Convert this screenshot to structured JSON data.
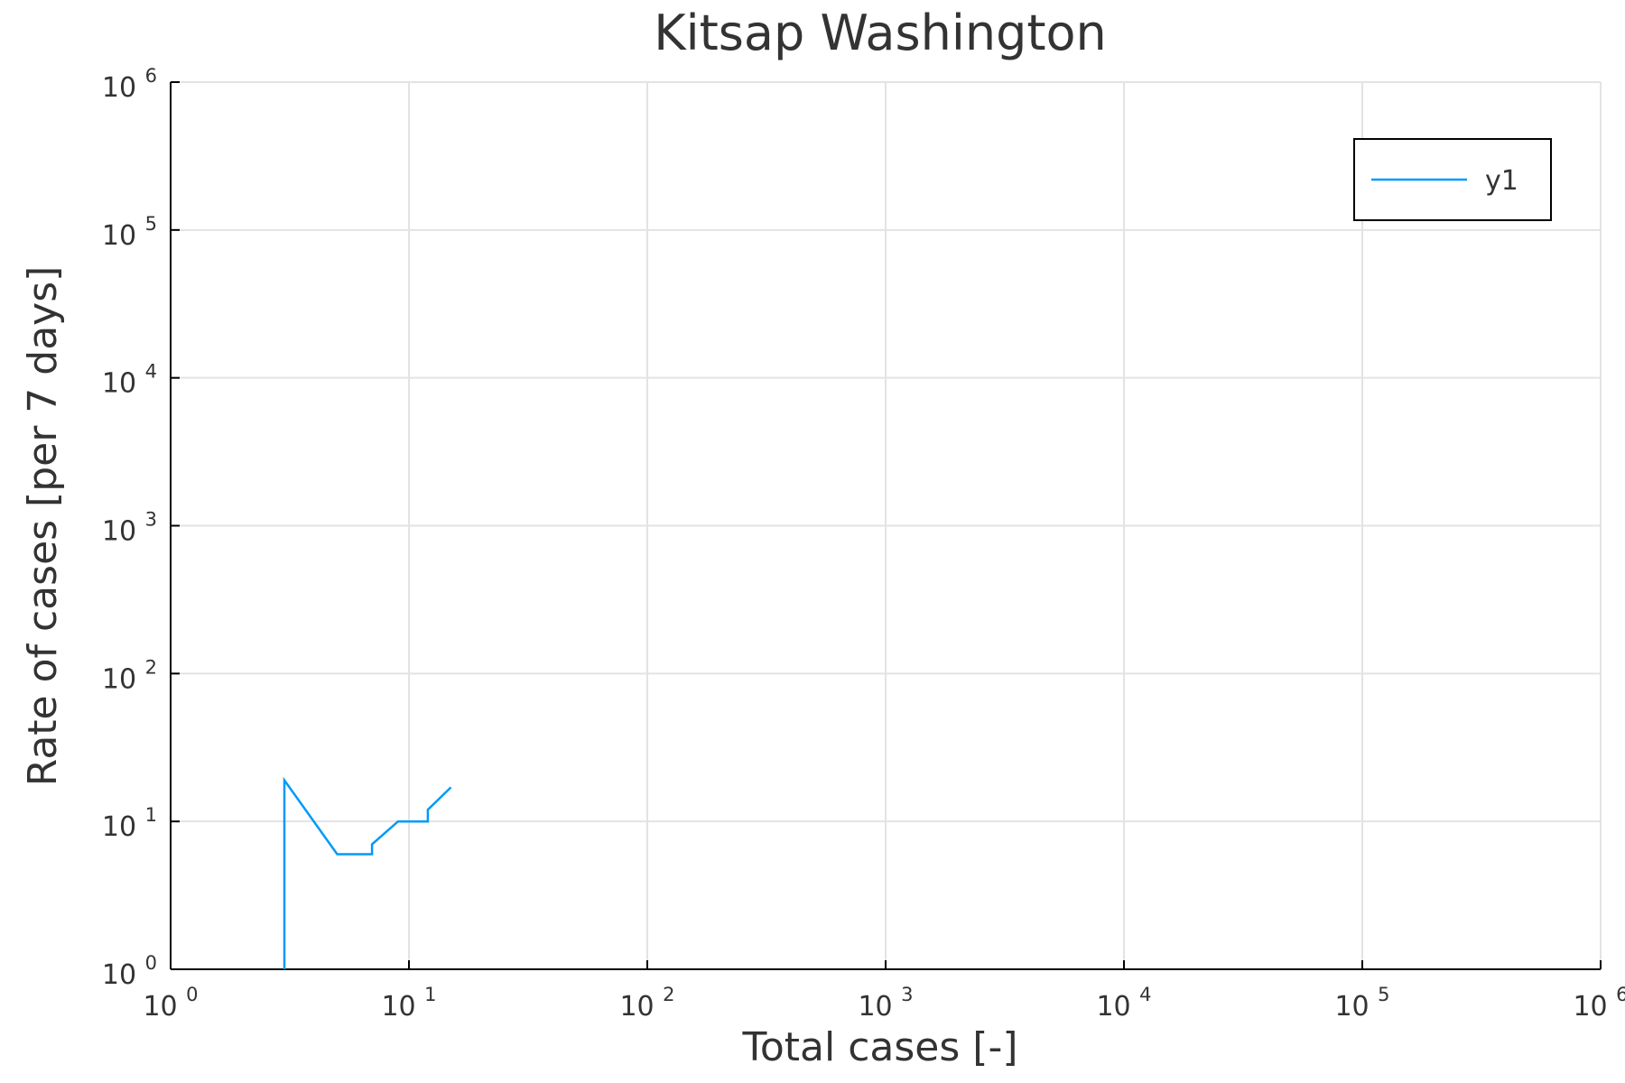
{
  "chart_data": {
    "type": "line",
    "title": "Kitsap Washington",
    "xlabel": "Total cases [-]",
    "ylabel": "Rate of cases [per 7 days]",
    "x_scale": "log",
    "y_scale": "log",
    "xlim": [
      1,
      1000000
    ],
    "ylim": [
      1,
      1000000
    ],
    "x_ticks": [
      {
        "base": "10",
        "exp": "0"
      },
      {
        "base": "10",
        "exp": "1"
      },
      {
        "base": "10",
        "exp": "2"
      },
      {
        "base": "10",
        "exp": "3"
      },
      {
        "base": "10",
        "exp": "4"
      },
      {
        "base": "10",
        "exp": "5"
      },
      {
        "base": "10",
        "exp": "6"
      }
    ],
    "y_ticks": [
      {
        "base": "10",
        "exp": "0"
      },
      {
        "base": "10",
        "exp": "1"
      },
      {
        "base": "10",
        "exp": "2"
      },
      {
        "base": "10",
        "exp": "3"
      },
      {
        "base": "10",
        "exp": "4"
      },
      {
        "base": "10",
        "exp": "5"
      },
      {
        "base": "10",
        "exp": "6"
      }
    ],
    "grid": true,
    "legend_position": "top-right",
    "series": [
      {
        "name": "y1",
        "color": "#009af9",
        "x": [
          3,
          3,
          5,
          7,
          7,
          9,
          12,
          12,
          15
        ],
        "y": [
          1,
          19,
          6,
          6,
          7,
          10,
          10,
          12,
          17
        ]
      }
    ]
  }
}
